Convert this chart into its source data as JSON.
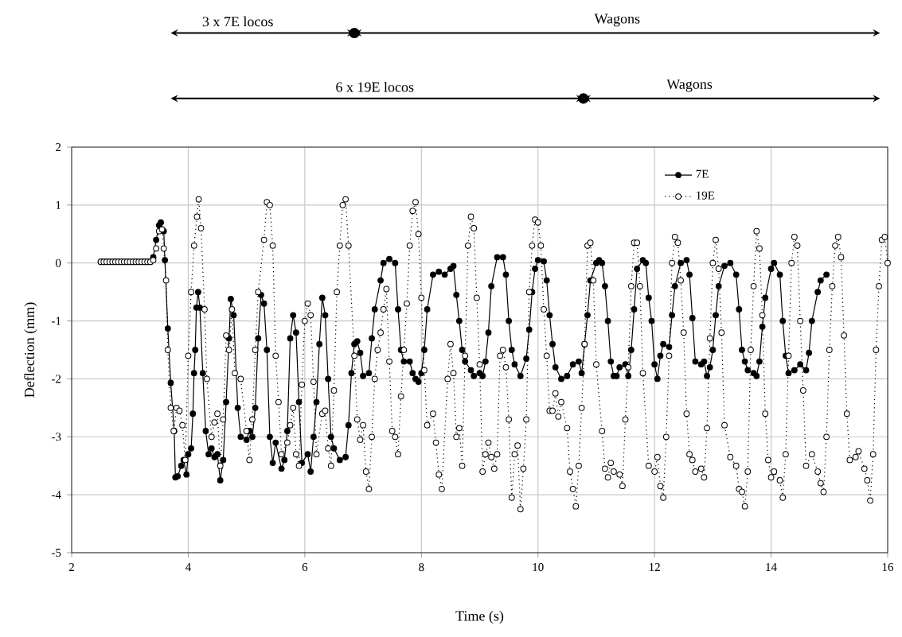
{
  "chart_data": {
    "type": "line",
    "xlabel": "Time (s)",
    "ylabel": "Deflection (mm)",
    "xlim": [
      2,
      16
    ],
    "ylim": [
      -5,
      2
    ],
    "xticks": [
      2,
      4,
      6,
      8,
      10,
      12,
      14,
      16
    ],
    "yticks": [
      -5,
      -4,
      -3,
      -2,
      -1,
      0,
      1,
      2
    ],
    "grid": true,
    "legend": "top right",
    "marker": "circle",
    "annotations": [
      "3 x 7E locos",
      "Wagons",
      "6 x 19E locos",
      "Wagons"
    ],
    "series": [
      {
        "name": "7E",
        "color": "#000000",
        "line_style": "solid",
        "x": [
          2.5,
          2.55,
          2.6,
          2.65,
          2.7,
          2.75,
          2.8,
          2.85,
          2.9,
          2.95,
          3.0,
          3.05,
          3.1,
          3.15,
          3.2,
          3.25,
          3.3,
          3.35,
          3.4,
          3.45,
          3.5,
          3.53,
          3.58,
          3.6,
          3.65,
          3.7,
          3.76,
          3.78,
          3.82,
          3.88,
          3.92,
          3.97,
          4.0,
          4.05,
          4.08,
          4.1,
          4.12,
          4.14,
          4.17,
          4.2,
          4.25,
          4.3,
          4.35,
          4.4,
          4.45,
          4.5,
          4.55,
          4.6,
          4.65,
          4.7,
          4.73,
          4.78,
          4.85,
          4.9,
          5.0,
          5.05,
          5.1,
          5.15,
          5.2,
          5.25,
          5.3,
          5.35,
          5.4,
          5.45,
          5.5,
          5.6,
          5.65,
          5.7,
          5.75,
          5.8,
          5.85,
          5.9,
          5.95,
          6.05,
          6.1,
          6.15,
          6.2,
          6.25,
          6.3,
          6.35,
          6.4,
          6.45,
          6.5,
          6.6,
          6.7,
          6.75,
          6.8,
          6.85,
          6.9,
          6.95,
          7.0,
          7.1,
          7.15,
          7.2,
          7.3,
          7.35,
          7.45,
          7.55,
          7.6,
          7.65,
          7.7,
          7.8,
          7.85,
          7.9,
          7.95,
          8.0,
          8.05,
          8.1,
          8.2,
          8.3,
          8.4,
          8.5,
          8.55,
          8.6,
          8.65,
          8.7,
          8.75,
          8.85,
          8.9,
          9.0,
          9.05,
          9.1,
          9.15,
          9.2,
          9.3,
          9.4,
          9.45,
          9.5,
          9.55,
          9.6,
          9.7,
          9.8,
          9.85,
          9.9,
          9.95,
          10.0,
          10.1,
          10.15,
          10.2,
          10.25,
          10.3,
          10.4,
          10.5,
          10.6,
          10.7,
          10.75,
          10.8,
          10.85,
          10.9,
          11.0,
          11.05,
          11.1,
          11.15,
          11.2,
          11.25,
          11.3,
          11.35,
          11.4,
          11.5,
          11.55,
          11.6,
          11.65,
          11.7,
          11.8,
          11.85,
          11.9,
          11.95,
          12.0,
          12.05,
          12.1,
          12.15,
          12.25,
          12.3,
          12.35,
          12.45,
          12.55,
          12.6,
          12.65,
          12.7,
          12.8,
          12.85,
          12.9,
          12.95,
          13.0,
          13.05,
          13.1,
          13.2,
          13.3,
          13.4,
          13.45,
          13.5,
          13.55,
          13.6,
          13.7,
          13.75,
          13.8,
          13.85,
          13.9,
          14.0,
          14.05,
          14.15,
          14.2,
          14.25,
          14.3,
          14.4,
          14.5,
          14.6,
          14.65,
          14.7,
          14.8,
          14.85,
          14.95
        ],
        "values": [
          0.02,
          0.02,
          0.02,
          0.02,
          0.02,
          0.02,
          0.02,
          0.02,
          0.02,
          0.02,
          0.02,
          0.02,
          0.02,
          0.02,
          0.02,
          0.02,
          0.02,
          0.02,
          0.1,
          0.4,
          0.65,
          0.7,
          0.55,
          0.05,
          -1.13,
          -2.07,
          -2.9,
          -3.7,
          -3.68,
          -3.5,
          -3.4,
          -3.65,
          -3.3,
          -3.2,
          -2.6,
          -1.9,
          -1.5,
          -0.77,
          -0.5,
          -0.77,
          -1.9,
          -2.9,
          -3.3,
          -3.2,
          -3.35,
          -3.3,
          -3.75,
          -3.4,
          -2.4,
          -1.3,
          -0.62,
          -0.9,
          -2.5,
          -3.0,
          -3.05,
          -2.9,
          -3.0,
          -2.5,
          -1.3,
          -0.55,
          -0.7,
          -1.5,
          -3.0,
          -3.45,
          -3.1,
          -3.55,
          -3.4,
          -2.9,
          -1.3,
          -0.9,
          -1.2,
          -2.4,
          -3.45,
          -3.3,
          -3.6,
          -3.0,
          -2.4,
          -1.4,
          -0.6,
          -0.9,
          -2.0,
          -3.0,
          -3.2,
          -3.4,
          -3.35,
          -2.8,
          -1.9,
          -1.4,
          -1.35,
          -1.55,
          -1.95,
          -1.9,
          -1.3,
          -0.8,
          -0.3,
          0.0,
          0.07,
          0.0,
          -0.8,
          -1.5,
          -1.7,
          -1.7,
          -1.9,
          -2.0,
          -2.05,
          -1.9,
          -1.5,
          -0.8,
          -0.2,
          -0.15,
          -0.2,
          -0.1,
          -0.05,
          -0.55,
          -1.0,
          -1.5,
          -1.7,
          -1.85,
          -1.95,
          -1.9,
          -1.95,
          -1.7,
          -1.2,
          -0.4,
          0.1,
          0.1,
          -0.2,
          -1.0,
          -1.5,
          -1.75,
          -1.95,
          -1.65,
          -1.15,
          -0.5,
          -0.1,
          0.05,
          0.03,
          -0.3,
          -0.9,
          -1.4,
          -1.8,
          -2.0,
          -1.95,
          -1.75,
          -1.7,
          -1.9,
          -1.4,
          -0.9,
          -0.3,
          0.0,
          0.05,
          0.0,
          -0.4,
          -1.0,
          -1.7,
          -1.95,
          -1.95,
          -1.8,
          -1.75,
          -1.95,
          -1.5,
          -0.8,
          -0.1,
          0.05,
          0.0,
          -0.6,
          -1.0,
          -1.75,
          -2.0,
          -1.6,
          -1.4,
          -1.45,
          -0.9,
          -0.4,
          0.0,
          0.05,
          -0.2,
          -0.95,
          -1.7,
          -1.75,
          -1.7,
          -1.95,
          -1.8,
          -1.5,
          -0.9,
          -0.4,
          -0.05,
          0.0,
          -0.2,
          -0.8,
          -1.5,
          -1.7,
          -1.85,
          -1.9,
          -1.95,
          -1.7,
          -1.1,
          -0.6,
          -0.1,
          0.0,
          -0.2,
          -1.0,
          -1.6,
          -1.9,
          -1.85,
          -1.75,
          -1.85,
          -1.55,
          -1.0,
          -0.5,
          -0.3,
          -0.2
        ]
      },
      {
        "name": "19E",
        "color": "#000000",
        "line_style": "dotted",
        "x": [
          2.5,
          2.55,
          2.6,
          2.65,
          2.7,
          2.75,
          2.8,
          2.85,
          2.9,
          2.95,
          3.0,
          3.05,
          3.1,
          3.15,
          3.2,
          3.25,
          3.3,
          3.35,
          3.4,
          3.45,
          3.5,
          3.55,
          3.58,
          3.62,
          3.65,
          3.7,
          3.75,
          3.8,
          3.85,
          3.9,
          3.95,
          4.0,
          4.05,
          4.1,
          4.15,
          4.18,
          4.22,
          4.28,
          4.32,
          4.4,
          4.45,
          4.5,
          4.55,
          4.6,
          4.65,
          4.7,
          4.75,
          4.8,
          4.9,
          5.0,
          5.05,
          5.1,
          5.15,
          5.2,
          5.3,
          5.35,
          5.4,
          5.45,
          5.5,
          5.55,
          5.6,
          5.7,
          5.75,
          5.8,
          5.85,
          5.9,
          5.95,
          6.0,
          6.05,
          6.1,
          6.15,
          6.2,
          6.3,
          6.35,
          6.4,
          6.45,
          6.5,
          6.55,
          6.6,
          6.65,
          6.7,
          6.75,
          6.85,
          6.9,
          6.95,
          7.0,
          7.05,
          7.1,
          7.15,
          7.2,
          7.25,
          7.3,
          7.35,
          7.4,
          7.45,
          7.5,
          7.55,
          7.6,
          7.65,
          7.7,
          7.75,
          7.8,
          7.85,
          7.9,
          7.95,
          8.0,
          8.05,
          8.1,
          8.2,
          8.25,
          8.3,
          8.35,
          8.45,
          8.5,
          8.55,
          8.6,
          8.65,
          8.7,
          8.75,
          8.8,
          8.85,
          8.9,
          8.95,
          9.0,
          9.05,
          9.1,
          9.15,
          9.2,
          9.25,
          9.3,
          9.35,
          9.4,
          9.45,
          9.5,
          9.55,
          9.6,
          9.65,
          9.7,
          9.75,
          9.8,
          9.85,
          9.9,
          9.95,
          10.0,
          10.05,
          10.1,
          10.15,
          10.2,
          10.25,
          10.3,
          10.35,
          10.4,
          10.5,
          10.55,
          10.6,
          10.65,
          10.7,
          10.75,
          10.8,
          10.85,
          10.9,
          10.95,
          11.0,
          11.1,
          11.15,
          11.2,
          11.25,
          11.3,
          11.4,
          11.45,
          11.5,
          11.55,
          11.6,
          11.65,
          11.7,
          11.75,
          11.8,
          11.9,
          12.0,
          12.05,
          12.1,
          12.15,
          12.2,
          12.25,
          12.3,
          12.35,
          12.4,
          12.45,
          12.5,
          12.55,
          12.6,
          12.65,
          12.7,
          12.8,
          12.85,
          12.9,
          12.95,
          13.0,
          13.05,
          13.1,
          13.15,
          13.2,
          13.3,
          13.4,
          13.45,
          13.5,
          13.55,
          13.6,
          13.65,
          13.7,
          13.75,
          13.8,
          13.85,
          13.9,
          13.95,
          14.0,
          14.05,
          14.15,
          14.2,
          14.25,
          14.3,
          14.35,
          14.4,
          14.45,
          14.5,
          14.55,
          14.6,
          14.7,
          14.8,
          14.85,
          14.9,
          14.95,
          15.0,
          15.05,
          15.1,
          15.15,
          15.2,
          15.25,
          15.3,
          15.35,
          15.45,
          15.5,
          15.6,
          15.65,
          15.7,
          15.75,
          15.8,
          15.85,
          15.9,
          15.95,
          16.0
        ],
        "values": [
          0.02,
          0.02,
          0.02,
          0.02,
          0.02,
          0.02,
          0.02,
          0.02,
          0.02,
          0.02,
          0.02,
          0.02,
          0.02,
          0.02,
          0.02,
          0.02,
          0.02,
          0.02,
          0.05,
          0.25,
          0.55,
          0.58,
          0.25,
          -0.3,
          -1.5,
          -2.5,
          -2.9,
          -2.5,
          -2.55,
          -2.8,
          -3.4,
          -1.6,
          -0.5,
          0.3,
          0.8,
          1.1,
          0.6,
          -0.8,
          -2.0,
          -3.0,
          -2.75,
          -2.6,
          -3.5,
          -2.7,
          -1.25,
          -1.5,
          -0.8,
          -1.9,
          -2.0,
          -2.9,
          -3.4,
          -2.7,
          -1.5,
          -0.5,
          0.4,
          1.05,
          1.0,
          0.3,
          -1.6,
          -2.4,
          -3.3,
          -3.1,
          -2.8,
          -2.5,
          -3.3,
          -3.5,
          -2.1,
          -1.0,
          -0.7,
          -0.9,
          -2.05,
          -3.3,
          -2.6,
          -2.55,
          -3.2,
          -3.5,
          -2.2,
          -0.5,
          0.3,
          1.0,
          1.1,
          0.3,
          -1.6,
          -2.7,
          -3.05,
          -2.8,
          -3.6,
          -3.9,
          -3.0,
          -2.0,
          -1.5,
          -1.2,
          -0.8,
          -0.45,
          -1.7,
          -2.9,
          -3.0,
          -3.3,
          -2.3,
          -1.5,
          -0.7,
          0.3,
          0.9,
          1.05,
          0.5,
          -0.6,
          -1.85,
          -2.8,
          -2.6,
          -3.1,
          -3.65,
          -3.9,
          -2.0,
          -1.4,
          -1.9,
          -3.0,
          -2.85,
          -3.5,
          -1.6,
          0.3,
          0.8,
          0.6,
          -0.6,
          -1.75,
          -3.6,
          -3.3,
          -3.1,
          -3.35,
          -3.55,
          -3.3,
          -1.6,
          -1.5,
          -1.8,
          -2.7,
          -4.05,
          -3.3,
          -3.15,
          -4.25,
          -3.55,
          -2.7,
          -0.5,
          0.3,
          0.75,
          0.7,
          0.3,
          -0.8,
          -1.6,
          -2.55,
          -2.55,
          -2.25,
          -2.65,
          -2.4,
          -2.85,
          -3.6,
          -3.9,
          -4.2,
          -3.5,
          -2.5,
          -1.4,
          0.3,
          0.35,
          -0.3,
          -1.75,
          -2.9,
          -3.55,
          -3.7,
          -3.45,
          -3.6,
          -3.65,
          -3.85,
          -2.7,
          -1.8,
          -0.4,
          0.35,
          0.35,
          -0.4,
          -1.9,
          -3.5,
          -3.6,
          -3.35,
          -3.85,
          -4.05,
          -3.0,
          -1.6,
          0.0,
          0.45,
          0.35,
          -0.3,
          -1.2,
          -2.6,
          -3.3,
          -3.4,
          -3.6,
          -3.55,
          -3.7,
          -2.85,
          -1.3,
          0.0,
          0.4,
          -0.1,
          -1.2,
          -2.8,
          -3.35,
          -3.5,
          -3.9,
          -3.95,
          -4.2,
          -3.6,
          -1.5,
          -0.4,
          0.55,
          0.25,
          -0.9,
          -2.6,
          -3.4,
          -3.7,
          -3.6,
          -3.75,
          -4.05,
          -3.3,
          -1.6,
          0.0,
          0.45,
          0.3,
          -1.0,
          -2.2,
          -3.5,
          -3.3,
          -3.6,
          -3.8,
          -3.95,
          -3.0,
          -1.5,
          -0.4,
          0.3,
          0.45,
          0.1,
          -1.25,
          -2.6,
          -3.4,
          -3.35,
          -3.25,
          -3.55,
          -3.75,
          -4.1,
          -3.3,
          -1.5,
          -0.4,
          0.4,
          0.45,
          0.0
        ]
      }
    ]
  }
}
